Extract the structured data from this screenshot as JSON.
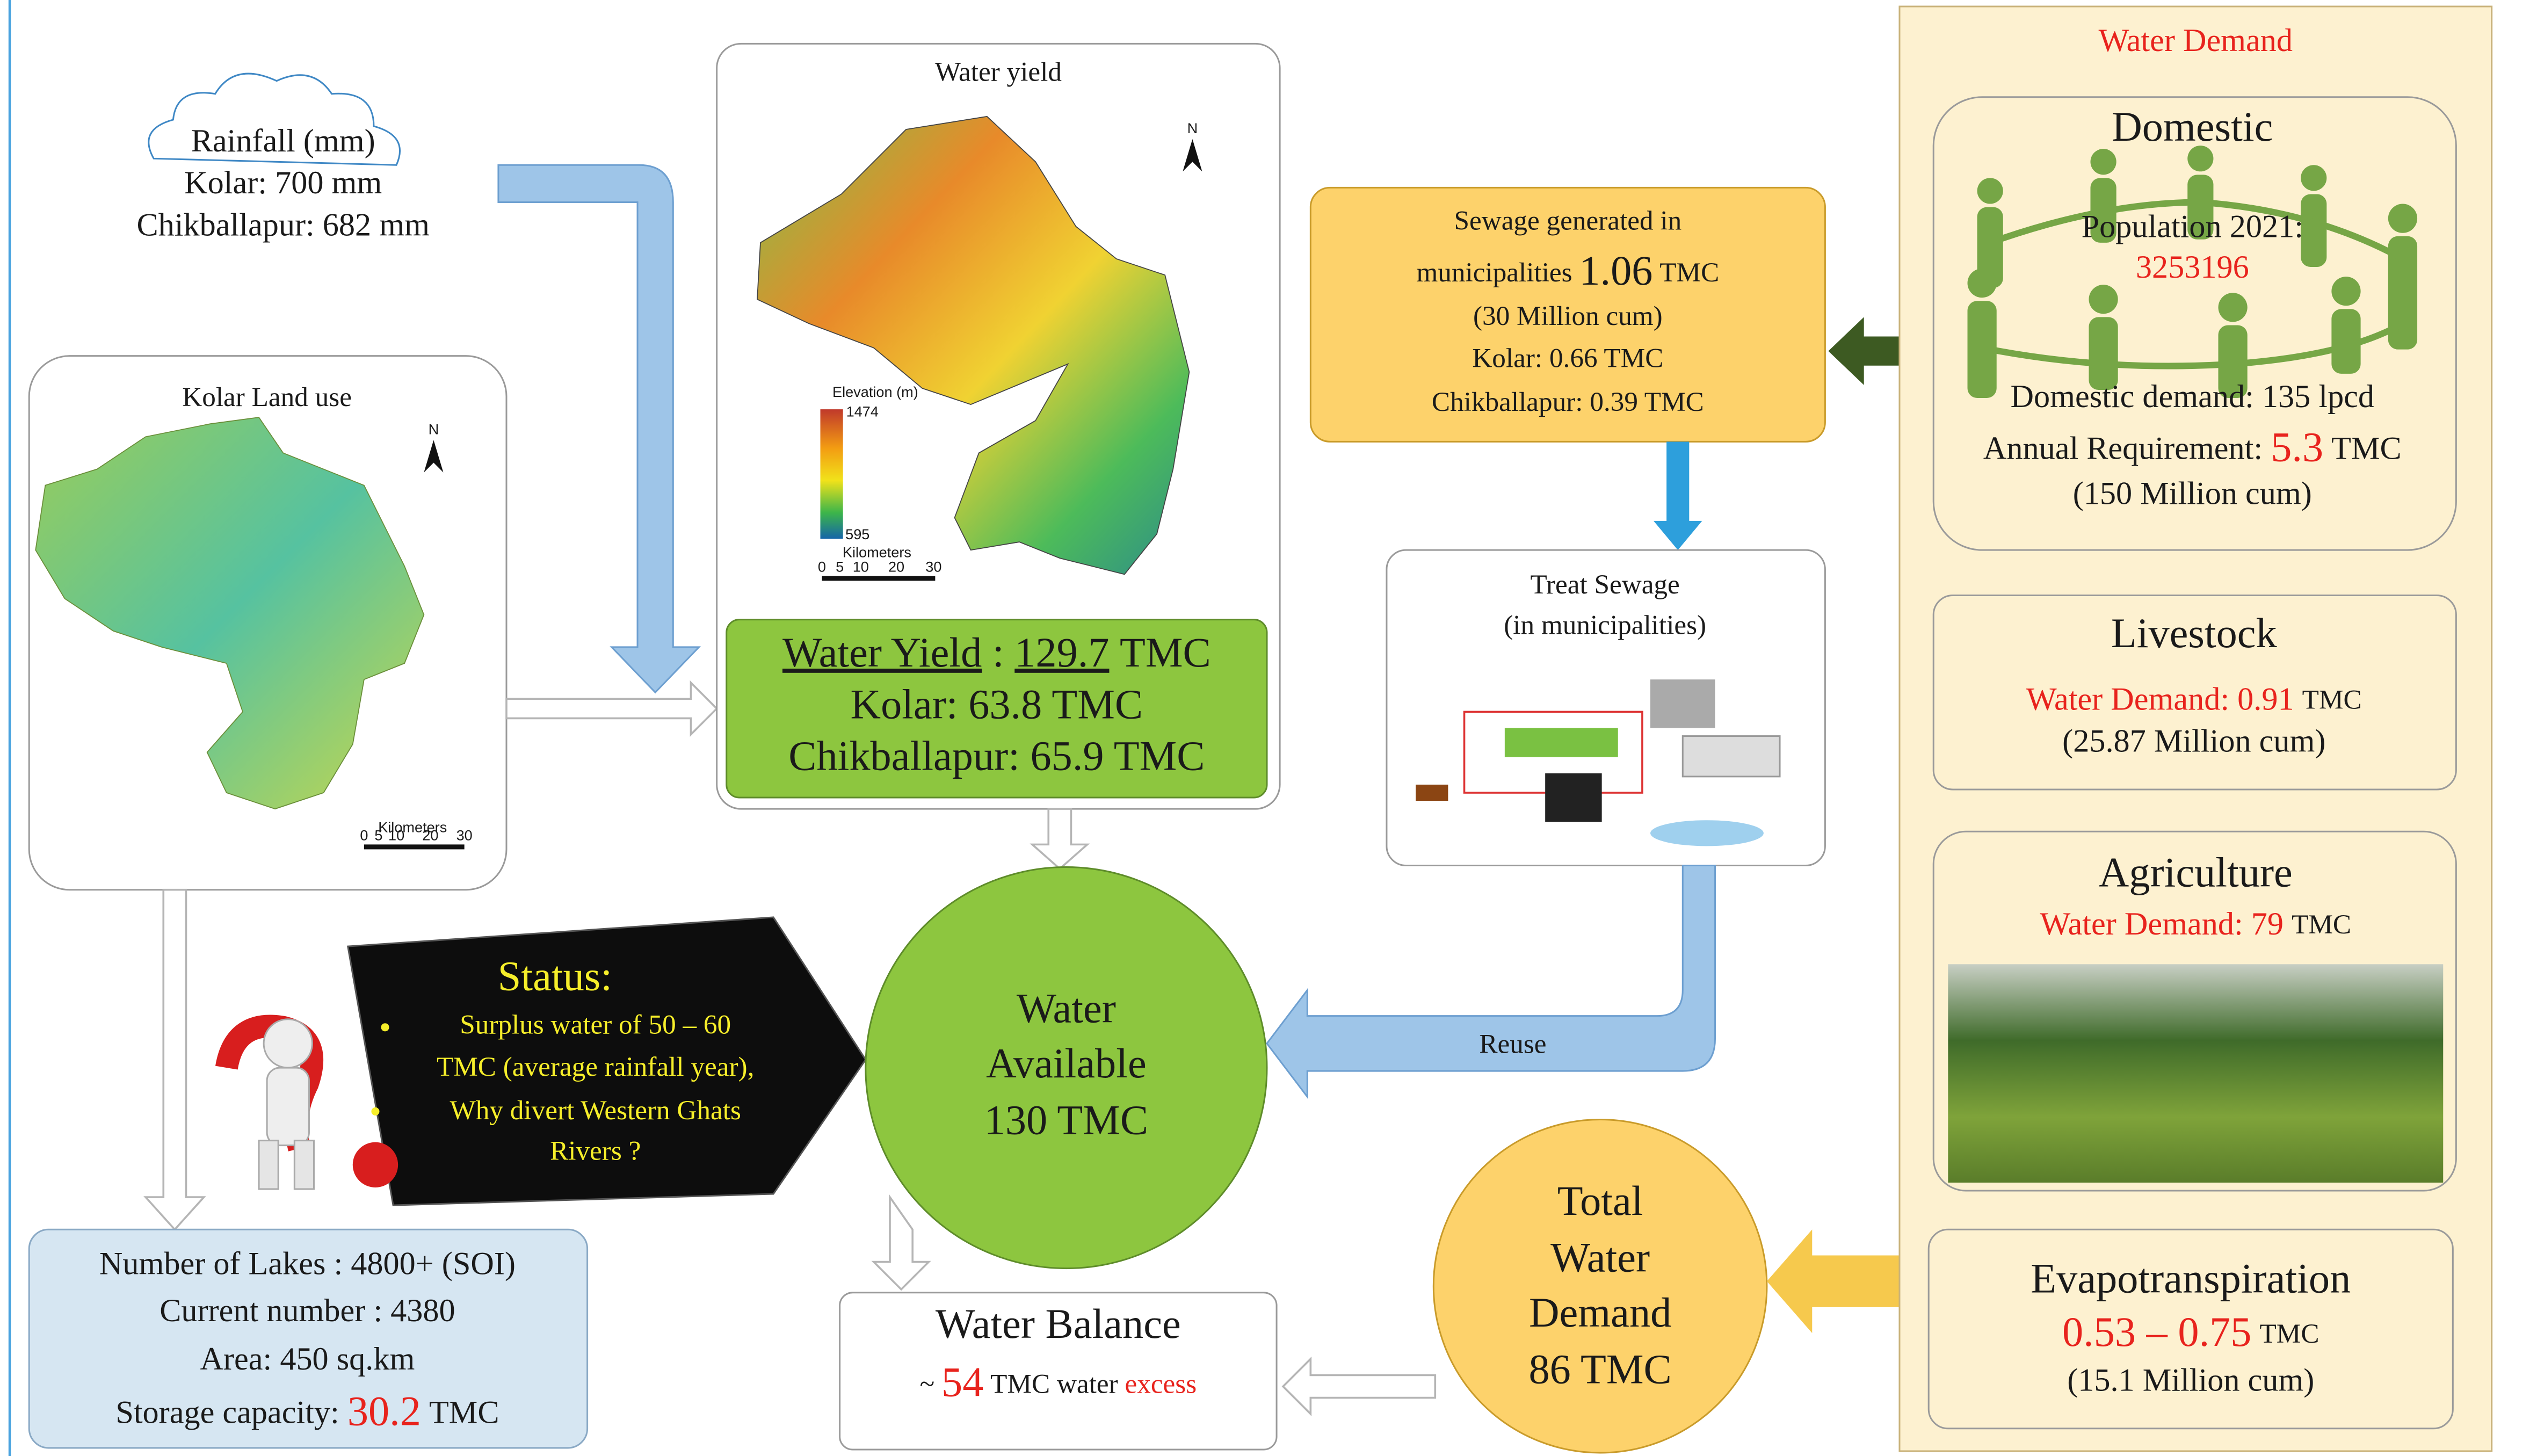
{
  "rainfall": {
    "title": "Rainfall (mm)",
    "lines": [
      "Kolar: 700 mm",
      "Chikballapur: 682 mm"
    ]
  },
  "land_use": {
    "title": "Kolar Land use",
    "north": "N",
    "scale_label": "Kilometers",
    "scale_ticks": [
      "0",
      "5",
      "10",
      "20",
      "30"
    ]
  },
  "water_yield": {
    "title": "Water yield",
    "north": "N",
    "legend_title": "Elevation (m)",
    "legend_high": "1474",
    "legend_low": "595",
    "scale_label": "Kilometers",
    "scale_ticks": [
      "0",
      "5",
      "10",
      "20",
      "30"
    ],
    "summary_label": "Water Yield",
    "summary_separator": ":",
    "summary_value": "129.7",
    "summary_unit": "TMC",
    "summary_lines": [
      "Kolar:  63.8 TMC",
      "Chikballapur:  65.9 TMC"
    ]
  },
  "sewage": {
    "line1": "Sewage generated in",
    "line2_label": "municipalities",
    "line2_value": "1.06",
    "line2_unit": "TMC",
    "lines": [
      "(30 Million cum)",
      "Kolar: 0.66 TMC",
      "Chikballapur: 0.39 TMC"
    ]
  },
  "treat": {
    "title": "Treat Sewage",
    "subtitle": "(in municipalities)"
  },
  "reuse": "Reuse",
  "status": {
    "title": "Status:",
    "bullets": [
      [
        "Surplus water of 50 – 60",
        "TMC (average rainfall year),"
      ],
      [
        "Why divert Western Ghats",
        "Rivers ?"
      ]
    ]
  },
  "water_available": {
    "lines": [
      "Water",
      "Available",
      "130 TMC"
    ]
  },
  "lakes": {
    "lines": [
      "Number of Lakes : 4800+ (SOI)",
      "Current number : 4380",
      "Area: 450 sq.km"
    ],
    "storage_label": "Storage capacity:",
    "storage_value": "30.2",
    "storage_unit": "TMC"
  },
  "water_balance": {
    "title": "Water Balance",
    "prefix": "~",
    "value": "54",
    "unit": "TMC water",
    "note": "excess"
  },
  "total_demand": {
    "lines": [
      "Total",
      "Water",
      "Demand",
      "86 TMC"
    ]
  },
  "water_demand": {
    "title": "Water Demand",
    "domestic": {
      "title": "Domestic",
      "population_label": "Population 2021:",
      "population": "3253196",
      "demand": "Domestic demand: 135 lpcd",
      "annual_label": "Annual Requirement:",
      "annual_value": "5.3",
      "annual_unit": "TMC",
      "annual_cum": "(150 Million cum)"
    },
    "livestock": {
      "title": "Livestock",
      "demand_label": "Water Demand: 0.91",
      "unit": "TMC",
      "cum": "(25.87 Million cum)"
    },
    "agriculture": {
      "title": "Agriculture",
      "demand_label": "Water Demand: 79",
      "unit": "TMC"
    },
    "evapotranspiration": {
      "title": "Evapotranspiration",
      "range": "0.53 – 0.75",
      "unit": "TMC",
      "cum": "(15.1 Million cum)"
    }
  }
}
